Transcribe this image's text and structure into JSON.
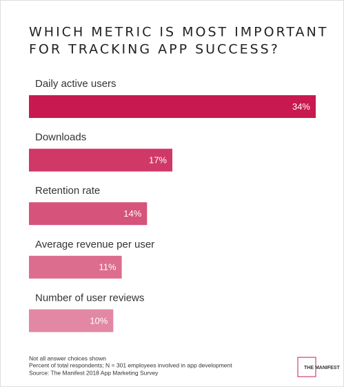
{
  "chart_data": {
    "type": "bar",
    "orientation": "horizontal",
    "title": [
      "WHICH METRIC IS MOST IMPORTANT",
      "FOR TRACKING APP SUCCESS?"
    ],
    "categories": [
      "Daily active users",
      "Downloads",
      "Retention rate",
      "Average revenue per user",
      "Number of user reviews"
    ],
    "values": [
      34,
      17,
      14,
      11,
      10
    ],
    "value_labels": [
      "34%",
      "17%",
      "14%",
      "11%",
      "10%"
    ],
    "colors": [
      "#c81a50",
      "#d03868",
      "#d6537b",
      "#dc6d8e",
      "#e288a4"
    ],
    "xlim": [
      0,
      34
    ]
  },
  "footnotes": [
    "Not all answer choices shown",
    "Percent of total respondents; N = 301 employees involved in app development",
    "Source: The Manifest 2018 App Marketing Survey"
  ],
  "logo": "THE MANIFEST"
}
